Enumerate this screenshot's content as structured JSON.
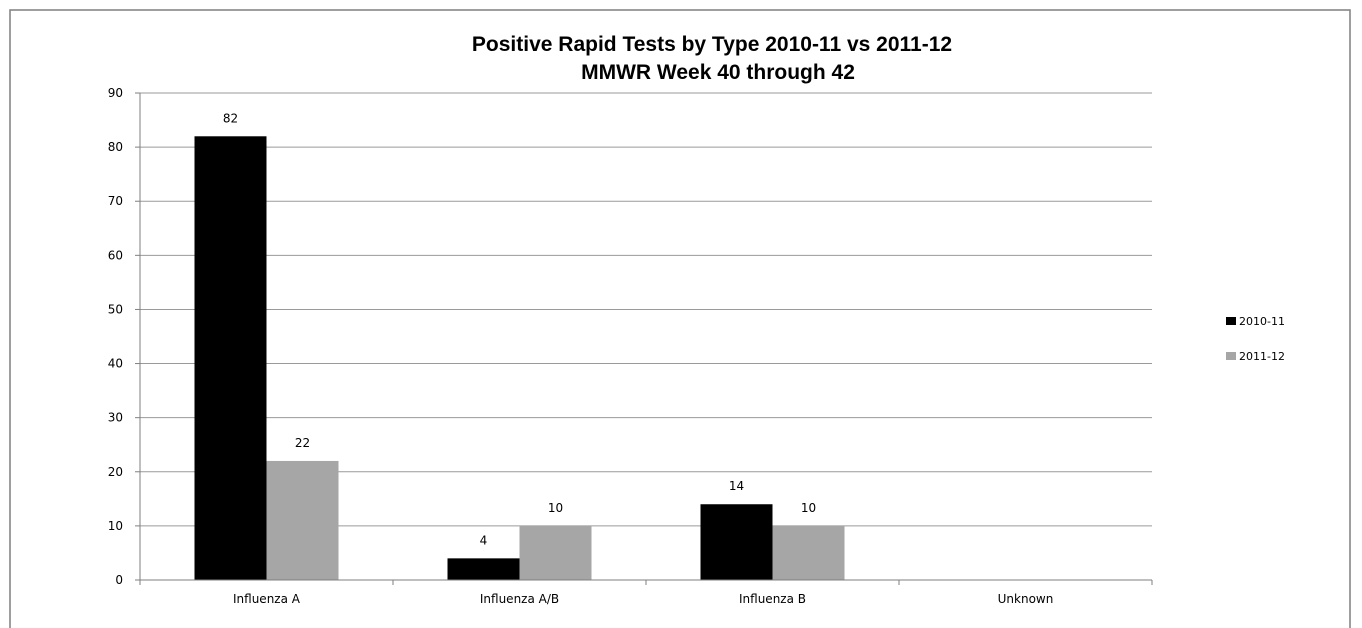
{
  "chart_data": {
    "type": "bar",
    "title": "Positive Rapid Tests by Type 2010-11 vs 2011-12",
    "subtitle": "MMWR Week 40 through 42",
    "categories": [
      "Influenza A",
      "Influenza A/B",
      "Influenza B",
      "Unknown"
    ],
    "series": [
      {
        "name": "2010-11",
        "values": [
          82,
          4,
          14,
          null
        ],
        "color": "#000000"
      },
      {
        "name": "2011-12",
        "values": [
          22,
          10,
          10,
          null
        ],
        "color": "#a6a6a6"
      }
    ],
    "ylim": [
      0,
      90
    ],
    "yticks": [
      0,
      10,
      20,
      30,
      40,
      50,
      60,
      70,
      80,
      90
    ],
    "grid": true,
    "legend_position": "right",
    "border_color": "#7f7f7f",
    "grid_color": "#9a9a9a"
  }
}
